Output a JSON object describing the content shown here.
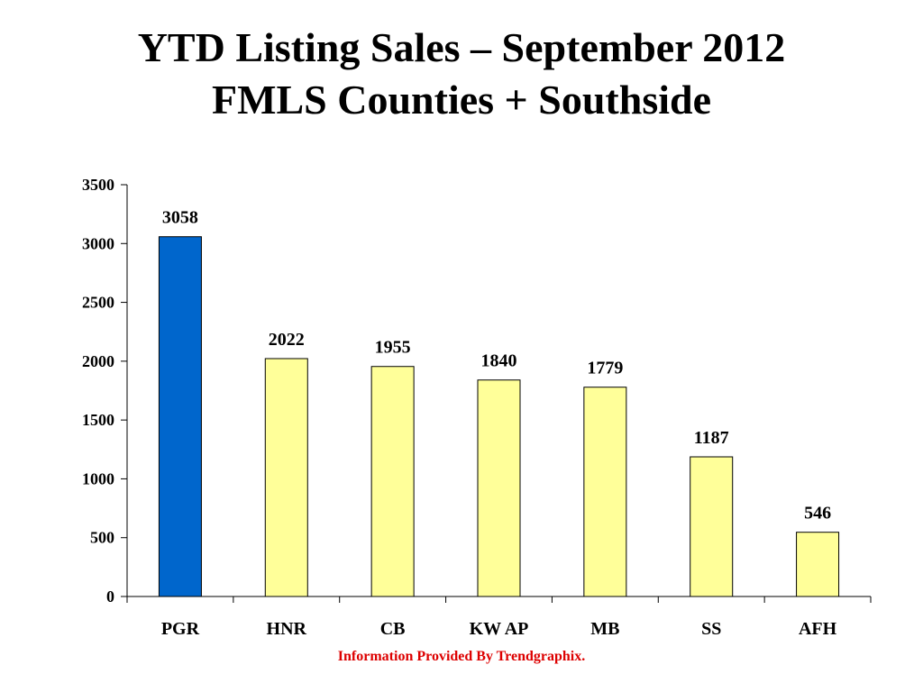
{
  "chart_data": {
    "type": "bar",
    "title": "YTD Listing Sales – September 2012",
    "subtitle": "FMLS Counties + Southside",
    "categories": [
      "PGR",
      "HNR",
      "CB",
      "KW AP",
      "MB",
      "SS",
      "AFH"
    ],
    "values": [
      3058,
      2022,
      1955,
      1840,
      1779,
      1187,
      546
    ],
    "data_labels": [
      "3058",
      "2022",
      "1955",
      "1840",
      "1779",
      "1187",
      "546"
    ],
    "xlabel": "",
    "ylabel": "",
    "ylim": [
      0,
      3500
    ],
    "yticks": [
      0,
      500,
      1000,
      1500,
      2000,
      2500,
      3000,
      3500
    ],
    "ytick_labels": [
      "0",
      "500",
      "1000",
      "1500",
      "2000",
      "2500",
      "3000",
      "3500"
    ],
    "grid": false,
    "legend": "none",
    "bar_colors": [
      "#0066CC",
      "#FFFF99",
      "#FFFF99",
      "#FFFF99",
      "#FFFF99",
      "#FFFF99",
      "#FFFF99"
    ],
    "bar_edge_color": "#000000"
  },
  "footer": {
    "text": "Information Provided By Trendgraphix.",
    "color": "#DD0000"
  }
}
